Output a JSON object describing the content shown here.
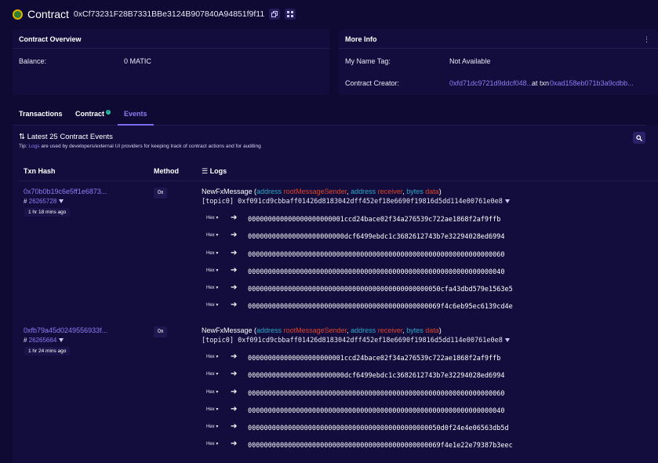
{
  "header": {
    "title": "Contract",
    "address": "0xCf73231F28B7331BBe3124B907840A94851f9f11"
  },
  "overview": {
    "title": "Contract Overview",
    "balance_label": "Balance:",
    "balance_value": "0 MATIC"
  },
  "more_info": {
    "title": "More Info",
    "name_tag_label": "My Name Tag:",
    "name_tag_value": "Not Available",
    "creator_label": "Contract Creator:",
    "creator_address": "0xfd71dc9721d9ddcf048...",
    "at_txn": "at txn",
    "creator_txn": "0xad158eb071b3a9cdbb..."
  },
  "tabs": [
    {
      "label": "Transactions"
    },
    {
      "label": "Contract"
    },
    {
      "label": "Events"
    }
  ],
  "events": {
    "title": "Latest 25 Contract Events",
    "tip_prefix": "Tip:",
    "tip_link": "Logs",
    "tip_rest": "are used by developers/external UI providers for keeping track of contract actions and for auditing",
    "columns": {
      "txhash": "Txn Hash",
      "method": "Method",
      "logs": "Logs"
    },
    "items": [
      {
        "txhash": "0x70b0b19c6e5ff1e6873...",
        "block": "26265728",
        "age": "1 hr 18 mins ago",
        "method": "0x",
        "event_name": "NewFxMessage",
        "params": [
          {
            "type": "address",
            "name": "rootMessageSender"
          },
          {
            "type": "address",
            "name": "receiver"
          },
          {
            "type": "bytes",
            "name": "data"
          }
        ],
        "topic_label": "[topic0]",
        "topic0": "0xf091cd9cbbaff01426d8183042dff452ef18e6690f19816d5dd114e00761e0e8",
        "data_format": "Hex",
        "data": [
          "000000000000000000000001ccd24bace02f34a276539c722ae1868f2af9ffb",
          "000000000000000000000000dcf6499ebdc1c3682612743b7e32294028ed6994",
          "0000000000000000000000000000000000000000000000000000000000000060",
          "0000000000000000000000000000000000000000000000000000000000000040",
          "000000000000000000000000000000000000000000000050cfa43dbd579e1563e5",
          "000000000000000000000000000000000000000000000069f4c6eb95ec6139cd4e"
        ]
      },
      {
        "txhash": "0xfb79a45d0249556933f...",
        "block": "26265664",
        "age": "1 hr 24 mins ago",
        "method": "0x",
        "event_name": "NewFxMessage",
        "params": [
          {
            "type": "address",
            "name": "rootMessageSender"
          },
          {
            "type": "address",
            "name": "receiver"
          },
          {
            "type": "bytes",
            "name": "data"
          }
        ],
        "topic_label": "[topic0]",
        "topic0": "0xf091cd9cbbaff01426d8183042dff452ef18e6690f19816d5dd114e00761e0e8",
        "data_format": "Hex",
        "data": [
          "000000000000000000000001ccd24bace02f34a276539c722ae1868f2af9ffb",
          "000000000000000000000000dcf6499ebdc1c3682612743b7e32294028ed6994",
          "0000000000000000000000000000000000000000000000000000000000000060",
          "0000000000000000000000000000000000000000000000000000000000000040",
          "000000000000000000000000000000000000000000000050d0f24e4e06563db5d",
          "000000000000000000000000000000000000000000000069f4e1e22e79387b3eec"
        ]
      }
    ]
  },
  "colors": {
    "background": "#0f0a33",
    "card": "#130d3d",
    "link": "#8c7cf6",
    "param_type": "#2ea9c7",
    "param_name": "#e0452b"
  },
  "icons": {
    "logo": "contract-logo-icon",
    "copy": "copy-icon",
    "qr": "qr-code-icon",
    "kebab": "kebab-menu-icon",
    "search": "search-icon",
    "filter": "filter-icon",
    "sort": "sort-icon",
    "logs": "list-icon",
    "arrow": "arrow-right-icon",
    "verified": "verified-check-icon"
  }
}
